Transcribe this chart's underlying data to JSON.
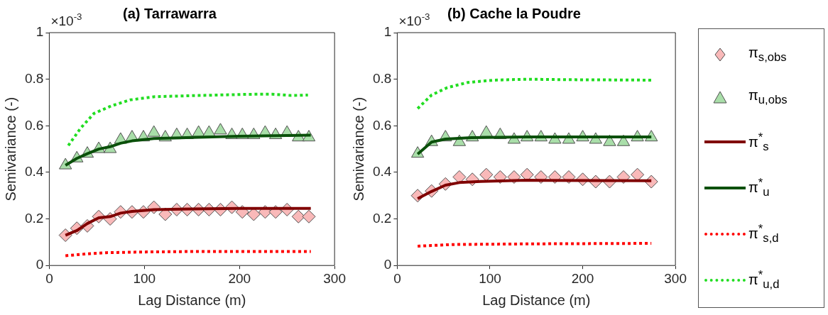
{
  "chart_data": [
    {
      "type": "line",
      "title": "(a) Tarrawarra",
      "xlabel": "Lag Distance (m)",
      "ylabel": "Semivariance (-)",
      "annotations": [
        "×10$^{-3}$"
      ],
      "xlim": [
        0,
        300
      ],
      "xticks": [
        0,
        100,
        200,
        300
      ],
      "ylim": [
        0,
        1
      ],
      "yticks": [
        0,
        0.2,
        0.4,
        0.6,
        0.8,
        1
      ],
      "grid": false,
      "legend": false,
      "series": [
        {
          "type": "scatter",
          "marker": "diamond",
          "color": "#f9b9b9",
          "x": [
            17,
            29,
            40,
            52,
            64,
            75,
            87,
            99,
            110,
            122,
            134,
            145,
            157,
            168,
            180,
            192,
            203,
            215,
            227,
            238,
            250,
            262,
            273
          ],
          "values": [
            0.13,
            0.16,
            0.17,
            0.21,
            0.2,
            0.23,
            0.23,
            0.23,
            0.25,
            0.22,
            0.24,
            0.24,
            0.24,
            0.24,
            0.24,
            0.25,
            0.23,
            0.22,
            0.23,
            0.23,
            0.24,
            0.21,
            0.21
          ]
        },
        {
          "type": "scatter",
          "marker": "triangle",
          "color": "#a9dea9",
          "x": [
            17,
            29,
            40,
            52,
            64,
            75,
            87,
            99,
            110,
            122,
            134,
            145,
            157,
            168,
            180,
            192,
            203,
            215,
            227,
            238,
            250,
            262,
            273
          ],
          "values": [
            0.43,
            0.46,
            0.48,
            0.5,
            0.5,
            0.54,
            0.55,
            0.55,
            0.57,
            0.55,
            0.56,
            0.56,
            0.57,
            0.57,
            0.58,
            0.56,
            0.56,
            0.56,
            0.57,
            0.56,
            0.57,
            0.55,
            0.55
          ]
        },
        {
          "type": "line",
          "line_style": "solid",
          "color": "#800000",
          "x": [
            17,
            29,
            40,
            52,
            64,
            75,
            87,
            110,
            150,
            200,
            275
          ],
          "values": [
            0.13,
            0.15,
            0.18,
            0.205,
            0.21,
            0.225,
            0.232,
            0.24,
            0.243,
            0.245,
            0.245
          ]
        },
        {
          "type": "line",
          "line_style": "solid",
          "color": "#0a500a",
          "x": [
            17,
            29,
            40,
            52,
            64,
            75,
            87,
            110,
            150,
            200,
            275
          ],
          "values": [
            0.43,
            0.46,
            0.48,
            0.5,
            0.51,
            0.525,
            0.535,
            0.545,
            0.55,
            0.555,
            0.56
          ]
        },
        {
          "type": "line",
          "line_style": "dotted",
          "color": "#ff0000",
          "x": [
            17,
            40,
            60,
            100,
            150,
            275
          ],
          "values": [
            0.042,
            0.05,
            0.055,
            0.058,
            0.06,
            0.06
          ]
        },
        {
          "type": "line",
          "line_style": "dotted",
          "color": "#22dd22",
          "x": [
            20,
            33,
            47,
            65,
            85,
            111,
            157,
            208,
            234,
            254,
            272
          ],
          "values": [
            0.515,
            0.59,
            0.653,
            0.685,
            0.711,
            0.725,
            0.73,
            0.735,
            0.736,
            0.73,
            0.732
          ]
        }
      ]
    },
    {
      "type": "line",
      "title": "(b) Cache la Poudre",
      "xlabel": "Lag Distance (m)",
      "ylabel": "Semivariance (-)",
      "annotations": [
        "×10$^{-3}$"
      ],
      "xlim": [
        0,
        300
      ],
      "xticks": [
        0,
        100,
        200,
        300
      ],
      "ylim": [
        0,
        1
      ],
      "yticks": [
        0,
        0.2,
        0.4,
        0.6,
        0.8,
        1
      ],
      "grid": false,
      "legend": "right",
      "series": [
        {
          "type": "scatter",
          "name": "π$_{s,obs}$",
          "marker": "diamond",
          "color": "#f9b9b9",
          "x": [
            22,
            37,
            52,
            67,
            81,
            96,
            111,
            126,
            140,
            155,
            170,
            185,
            200,
            214,
            229,
            244,
            259,
            274
          ],
          "values": [
            0.3,
            0.32,
            0.35,
            0.38,
            0.37,
            0.39,
            0.38,
            0.38,
            0.39,
            0.38,
            0.38,
            0.38,
            0.37,
            0.36,
            0.36,
            0.38,
            0.39,
            0.36
          ]
        },
        {
          "type": "scatter",
          "name": "π$_{u,obs}$",
          "marker": "triangle",
          "color": "#a9dea9",
          "x": [
            22,
            37,
            52,
            67,
            81,
            96,
            111,
            126,
            140,
            155,
            170,
            185,
            200,
            214,
            229,
            244,
            259,
            274
          ],
          "values": [
            0.48,
            0.53,
            0.55,
            0.53,
            0.55,
            0.57,
            0.56,
            0.54,
            0.55,
            0.55,
            0.54,
            0.54,
            0.55,
            0.54,
            0.53,
            0.53,
            0.55,
            0.55
          ]
        },
        {
          "type": "line",
          "name": "π$^{*}$$_{s}$",
          "line_style": "solid",
          "color": "#800000",
          "x": [
            22,
            37,
            52,
            67,
            90,
            140,
            274
          ],
          "values": [
            0.287,
            0.318,
            0.345,
            0.356,
            0.361,
            0.366,
            0.364
          ]
        },
        {
          "type": "line",
          "name": "π$^{*}$$_{u}$",
          "line_style": "solid",
          "color": "#0a500a",
          "x": [
            22,
            37,
            52,
            80,
            140,
            274
          ],
          "values": [
            0.478,
            0.53,
            0.543,
            0.549,
            0.552,
            0.552
          ]
        },
        {
          "type": "line",
          "name": "π$^{*}$$_{s,d}$",
          "line_style": "dotted",
          "color": "#ff0000",
          "x": [
            22,
            60,
            150,
            274
          ],
          "values": [
            0.083,
            0.09,
            0.093,
            0.095
          ]
        },
        {
          "type": "line",
          "name": "π$^{*}$$_{u,d}$",
          "line_style": "dotted",
          "color": "#22dd22",
          "x": [
            22,
            37,
            54,
            76,
            104,
            140,
            182,
            274
          ],
          "values": [
            0.674,
            0.732,
            0.764,
            0.786,
            0.796,
            0.8,
            0.798,
            0.796
          ]
        }
      ]
    }
  ]
}
